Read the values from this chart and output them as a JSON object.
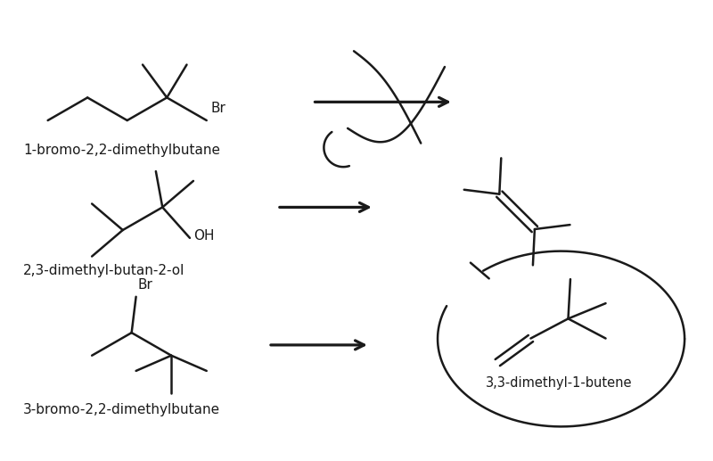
{
  "bg_color": "#ffffff",
  "lc": "#1a1a1a",
  "lw": 1.8,
  "label1": "1-bromo-2,2-dimethylbutane",
  "label2": "2,3-dimethyl-butan-2-ol",
  "label3": "3-bromo-2,2-dimethylbutane",
  "label_p3": "3,3-dimethyl-1-butene",
  "fs": 11
}
